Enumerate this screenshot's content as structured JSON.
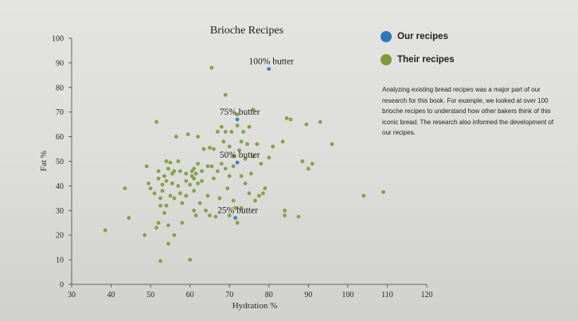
{
  "chart_data": {
    "type": "scatter",
    "title": "Brioche Recipes",
    "xlabel": "Hydration %",
    "ylabel": "Fat %",
    "xlim": [
      30,
      120
    ],
    "ylim": [
      0,
      100
    ],
    "xticks": [
      "30",
      "40",
      "50",
      "60",
      "70",
      "80",
      "90",
      "100",
      "110",
      "120"
    ],
    "yticks": [
      "0",
      "10",
      "20",
      "30",
      "40",
      "50",
      "60",
      "70",
      "80",
      "90",
      "100"
    ],
    "grid": false,
    "legend_position": "top-right",
    "series": [
      {
        "name": "Our recipes",
        "color": "#2b78c2",
        "points": [
          [
            80,
            87.5
          ],
          [
            72,
            67
          ],
          [
            72,
            49.5
          ],
          [
            71.5,
            27
          ]
        ]
      },
      {
        "name": "Their recipes",
        "color": "#7d9a3a",
        "points": [
          [
            38.5,
            22
          ],
          [
            43.5,
            39
          ],
          [
            44.5,
            27
          ],
          [
            48.5,
            20
          ],
          [
            49,
            48
          ],
          [
            49.5,
            41
          ],
          [
            50,
            39
          ],
          [
            51,
            37
          ],
          [
            51.5,
            23
          ],
          [
            51.5,
            66
          ],
          [
            52,
            46
          ],
          [
            52,
            43
          ],
          [
            52,
            25
          ],
          [
            52.5,
            35
          ],
          [
            52.5,
            32
          ],
          [
            52.5,
            9.5
          ],
          [
            53,
            40.5
          ],
          [
            53,
            38
          ],
          [
            53.5,
            44
          ],
          [
            53.5,
            29
          ],
          [
            54,
            50
          ],
          [
            54,
            42
          ],
          [
            54,
            32
          ],
          [
            54.5,
            47
          ],
          [
            54.5,
            24
          ],
          [
            54.5,
            16.5
          ],
          [
            55,
            49.5
          ],
          [
            55,
            36
          ],
          [
            55.5,
            45
          ],
          [
            55.5,
            41
          ],
          [
            56,
            46
          ],
          [
            56,
            35
          ],
          [
            56,
            20
          ],
          [
            56.5,
            60
          ],
          [
            57,
            50
          ],
          [
            57,
            40
          ],
          [
            57.5,
            46
          ],
          [
            57.5,
            37
          ],
          [
            58,
            33
          ],
          [
            58,
            25
          ],
          [
            59,
            45
          ],
          [
            59,
            42
          ],
          [
            59,
            36
          ],
          [
            59.5,
            61
          ],
          [
            60,
            40.5
          ],
          [
            60,
            10
          ],
          [
            60.5,
            46
          ],
          [
            60.5,
            44
          ],
          [
            61,
            47
          ],
          [
            61,
            43
          ],
          [
            61,
            38
          ],
          [
            61,
            30
          ],
          [
            61.5,
            45
          ],
          [
            61.5,
            28
          ],
          [
            62,
            49
          ],
          [
            62,
            60
          ],
          [
            62,
            41
          ],
          [
            62.5,
            33
          ],
          [
            63,
            46
          ],
          [
            63,
            42
          ],
          [
            63.5,
            55
          ],
          [
            64,
            30
          ],
          [
            64.5,
            48
          ],
          [
            64.5,
            36
          ],
          [
            65,
            55.5
          ],
          [
            65,
            28
          ],
          [
            65.5,
            88
          ],
          [
            65.5,
            48
          ],
          [
            66,
            55
          ],
          [
            66,
            43
          ],
          [
            66.5,
            27.5
          ],
          [
            67,
            62
          ],
          [
            67,
            46
          ],
          [
            67.5,
            35
          ],
          [
            68,
            64
          ],
          [
            68,
            49
          ],
          [
            68.5,
            58
          ],
          [
            69,
            77
          ],
          [
            69,
            62
          ],
          [
            69,
            47
          ],
          [
            69.5,
            39
          ],
          [
            70,
            56
          ],
          [
            70,
            44
          ],
          [
            70,
            28
          ],
          [
            70.5,
            62
          ],
          [
            71,
            52
          ],
          [
            71,
            48
          ],
          [
            71,
            34
          ],
          [
            71.5,
            31
          ],
          [
            72,
            69
          ],
          [
            72,
            64.5
          ],
          [
            72,
            25
          ],
          [
            72.5,
            54.5
          ],
          [
            73,
            58
          ],
          [
            73,
            44
          ],
          [
            73,
            31
          ],
          [
            73.5,
            62
          ],
          [
            74,
            51
          ],
          [
            74,
            41
          ],
          [
            74.5,
            57
          ],
          [
            75,
            64
          ],
          [
            75,
            37
          ],
          [
            75.5,
            45
          ],
          [
            76,
            71
          ],
          [
            76,
            52
          ],
          [
            76.5,
            34
          ],
          [
            77,
            57
          ],
          [
            77.5,
            36
          ],
          [
            78,
            49
          ],
          [
            78.5,
            37
          ],
          [
            79,
            39
          ],
          [
            80,
            51.5
          ],
          [
            81,
            56
          ],
          [
            83.5,
            58
          ],
          [
            84,
            30
          ],
          [
            84,
            28
          ],
          [
            84.5,
            67.5
          ],
          [
            85.5,
            67
          ],
          [
            87.5,
            27.5
          ],
          [
            88.5,
            50
          ],
          [
            89.5,
            65
          ],
          [
            90,
            47
          ],
          [
            91,
            49
          ],
          [
            93,
            66
          ],
          [
            96,
            57
          ],
          [
            104,
            36
          ],
          [
            109,
            37.5
          ]
        ]
      }
    ],
    "annotations": [
      {
        "text": "100% butter",
        "x": 80,
        "y": 87.5
      },
      {
        "text": "75% butter",
        "x": 72,
        "y": 67
      },
      {
        "text": "50% butter",
        "x": 72,
        "y": 49.5
      },
      {
        "text": "25% butter",
        "x": 71.5,
        "y": 27
      }
    ]
  },
  "note": "Analyzing existing bread recipes was a major part of our research for this book. For example, we looked at over 100 brioche recipes to understand how other bakers think of this iconic bread. The research also informed the development of our recipes."
}
